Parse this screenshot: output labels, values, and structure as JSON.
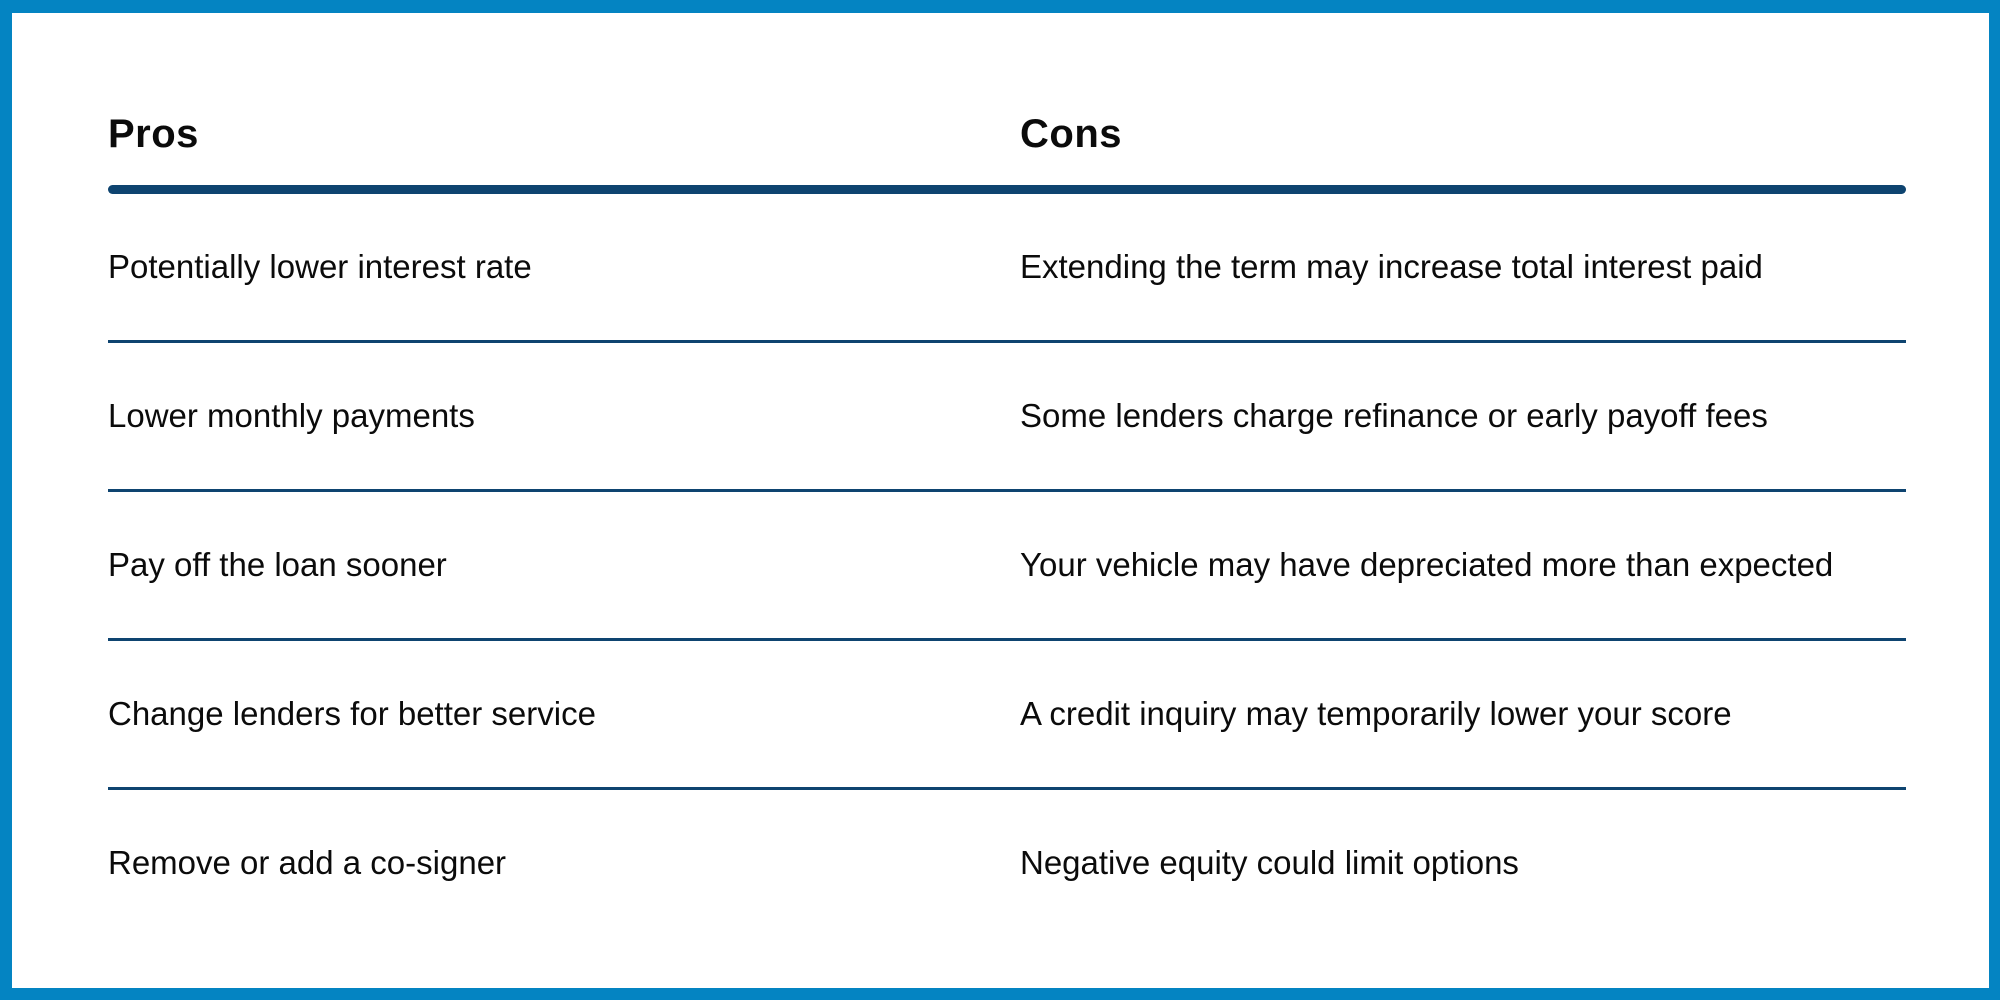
{
  "theme": {
    "border_color": "#0484c2",
    "rule_color": "#0e4470",
    "text_color": "#0b0b0b",
    "background": "#ffffff"
  },
  "table": {
    "columns": [
      {
        "header": "Pros"
      },
      {
        "header": "Cons"
      }
    ],
    "rows": [
      {
        "pro": "Potentially lower interest rate",
        "con": "Extending the term may increase total interest paid"
      },
      {
        "pro": "Lower monthly payments",
        "con": "Some lenders charge refinance or early payoff fees"
      },
      {
        "pro": "Pay off the loan sooner",
        "con": "Your vehicle may have depreciated more than expected"
      },
      {
        "pro": "Change lenders for better service",
        "con": "A credit inquiry may temporarily lower your score"
      },
      {
        "pro": "Remove or add a co-signer",
        "con": "Negative equity could limit options"
      }
    ]
  }
}
